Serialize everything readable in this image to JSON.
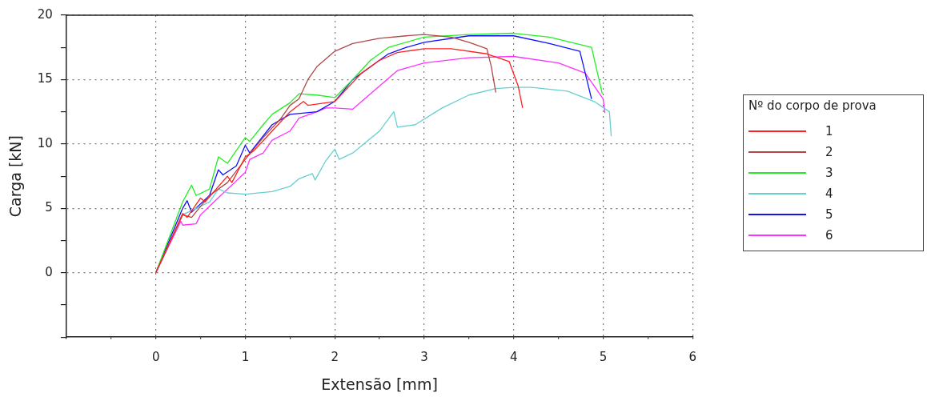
{
  "chart_data": {
    "type": "line",
    "xlabel": "Extensão [mm]",
    "ylabel": "Carga [kN]",
    "legend_title": "Nº do corpo de prova",
    "legend": "right",
    "grid": true,
    "marker": "none",
    "line_style": "solid",
    "xlim": [
      -1,
      6
    ],
    "xticks": [
      {
        "value": -1,
        "label": null
      },
      {
        "value": -0.5,
        "label": null
      },
      0,
      {
        "value": 0.5,
        "label": null
      },
      1,
      {
        "value": 1.5,
        "label": null
      },
      2,
      {
        "value": 2.5,
        "label": null
      },
      3,
      {
        "value": 3.5,
        "label": null
      },
      4,
      {
        "value": 4.5,
        "label": null
      },
      5,
      {
        "value": 5.5,
        "label": null
      },
      6
    ],
    "ylim": [
      -5,
      20
    ],
    "yticks": [
      {
        "value": -5,
        "label": null
      },
      {
        "value": -2.5,
        "label": null
      },
      0,
      {
        "value": 2.5,
        "label": null
      },
      5,
      {
        "value": 7.5,
        "label": null
      },
      10,
      {
        "value": 12.5,
        "label": null
      },
      15,
      {
        "value": 17.5,
        "label": null
      },
      20
    ],
    "series": [
      {
        "name": "1",
        "color": "#ff2020",
        "x": [
          0,
          0.3,
          0.35,
          0.5,
          0.55,
          0.8,
          0.85,
          1.0,
          1.1,
          1.3,
          1.5,
          1.65,
          1.7,
          2.0,
          2.3,
          2.5,
          2.6,
          2.7,
          3.0,
          3.3,
          3.7,
          3.95,
          4.05,
          4.1
        ],
        "values": [
          0,
          4.6,
          4.3,
          5.8,
          5.5,
          7.5,
          7.0,
          9.0,
          9.5,
          11,
          12.5,
          13.3,
          13.0,
          13.3,
          15.5,
          16.5,
          16.8,
          17.1,
          17.4,
          17.4,
          17.0,
          16.4,
          14.5,
          12.8
        ]
      },
      {
        "name": "2",
        "color": "#b04848",
        "x": [
          0,
          0.3,
          0.4,
          0.6,
          0.8,
          1.0,
          1.2,
          1.4,
          1.5,
          1.6,
          1.7,
          1.75,
          1.8,
          2.0,
          2.2,
          2.5,
          2.8,
          3.0,
          3.3,
          3.5,
          3.7,
          3.75,
          3.8
        ],
        "values": [
          0,
          4.5,
          4.3,
          6,
          7.0,
          8.8,
          10.5,
          12.0,
          13.0,
          13.5,
          15.0,
          15.5,
          16,
          17.2,
          17.8,
          18.2,
          18.4,
          18.5,
          18.3,
          17.9,
          17.4,
          16.0,
          14.0
        ]
      },
      {
        "name": "3",
        "color": "#22ee22",
        "x": [
          0,
          0.3,
          0.4,
          0.45,
          0.6,
          0.7,
          0.8,
          1.0,
          1.05,
          1.2,
          1.3,
          1.5,
          1.6,
          1.8,
          2.0,
          2.2,
          2.4,
          2.6,
          3.0,
          3.5,
          4.0,
          4.4,
          4.87,
          4.99
        ],
        "values": [
          0,
          5.5,
          6.8,
          6.0,
          6.5,
          9.0,
          8.5,
          10.5,
          10.2,
          11.5,
          12.3,
          13.2,
          13.9,
          13.8,
          13.6,
          15.0,
          16.5,
          17.5,
          18.3,
          18.5,
          18.6,
          18.3,
          17.5,
          13.9
        ]
      },
      {
        "name": "4",
        "color": "#66d0d0",
        "x": [
          0,
          0.3,
          0.6,
          0.7,
          0.8,
          1.0,
          1.3,
          1.5,
          1.6,
          1.75,
          1.78,
          1.9,
          2.0,
          2.05,
          2.2,
          2.5,
          2.66,
          2.7,
          2.9,
          3.2,
          3.5,
          3.8,
          4.0,
          4.2,
          4.6,
          4.9,
          5.07,
          5.09
        ],
        "values": [
          0,
          4.5,
          5.5,
          6.5,
          6.2,
          6.1,
          6.3,
          6.7,
          7.3,
          7.7,
          7.2,
          8.7,
          9.6,
          8.8,
          9.3,
          11.0,
          12.5,
          11.3,
          11.5,
          12.8,
          13.8,
          14.3,
          14.4,
          14.4,
          14.1,
          13.3,
          12.5,
          10.6
        ]
      },
      {
        "name": "5",
        "color": "#1010ff",
        "x": [
          0,
          0.3,
          0.35,
          0.4,
          0.6,
          0.7,
          0.75,
          0.9,
          1.0,
          1.05,
          1.3,
          1.5,
          1.8,
          2.0,
          2.2,
          2.5,
          2.6,
          2.8,
          3.0,
          3.5,
          4.0,
          4.4,
          4.74,
          4.87
        ],
        "values": [
          0,
          5.0,
          5.6,
          4.7,
          6.0,
          8.0,
          7.6,
          8.3,
          9.9,
          9.3,
          11.5,
          12.3,
          12.5,
          13.3,
          15.0,
          16.5,
          17.0,
          17.5,
          17.9,
          18.4,
          18.4,
          17.8,
          17.2,
          13.5
        ]
      },
      {
        "name": "6",
        "color": "#ff30ff",
        "x": [
          0,
          0.28,
          0.3,
          0.45,
          0.5,
          0.8,
          0.85,
          1.0,
          1.05,
          1.2,
          1.3,
          1.5,
          1.6,
          1.8,
          1.9,
          2.0,
          2.2,
          2.3,
          2.5,
          2.7,
          3.0,
          3.5,
          4.0,
          4.5,
          4.8,
          5.0,
          5.02
        ],
        "values": [
          0,
          4.0,
          3.7,
          3.8,
          4.5,
          6.5,
          6.8,
          7.8,
          8.8,
          9.3,
          10.3,
          11.0,
          12.0,
          12.5,
          12.8,
          12.8,
          12.7,
          13.3,
          14.5,
          15.7,
          16.3,
          16.7,
          16.8,
          16.3,
          15.5,
          13.5,
          12.4
        ]
      }
    ]
  }
}
